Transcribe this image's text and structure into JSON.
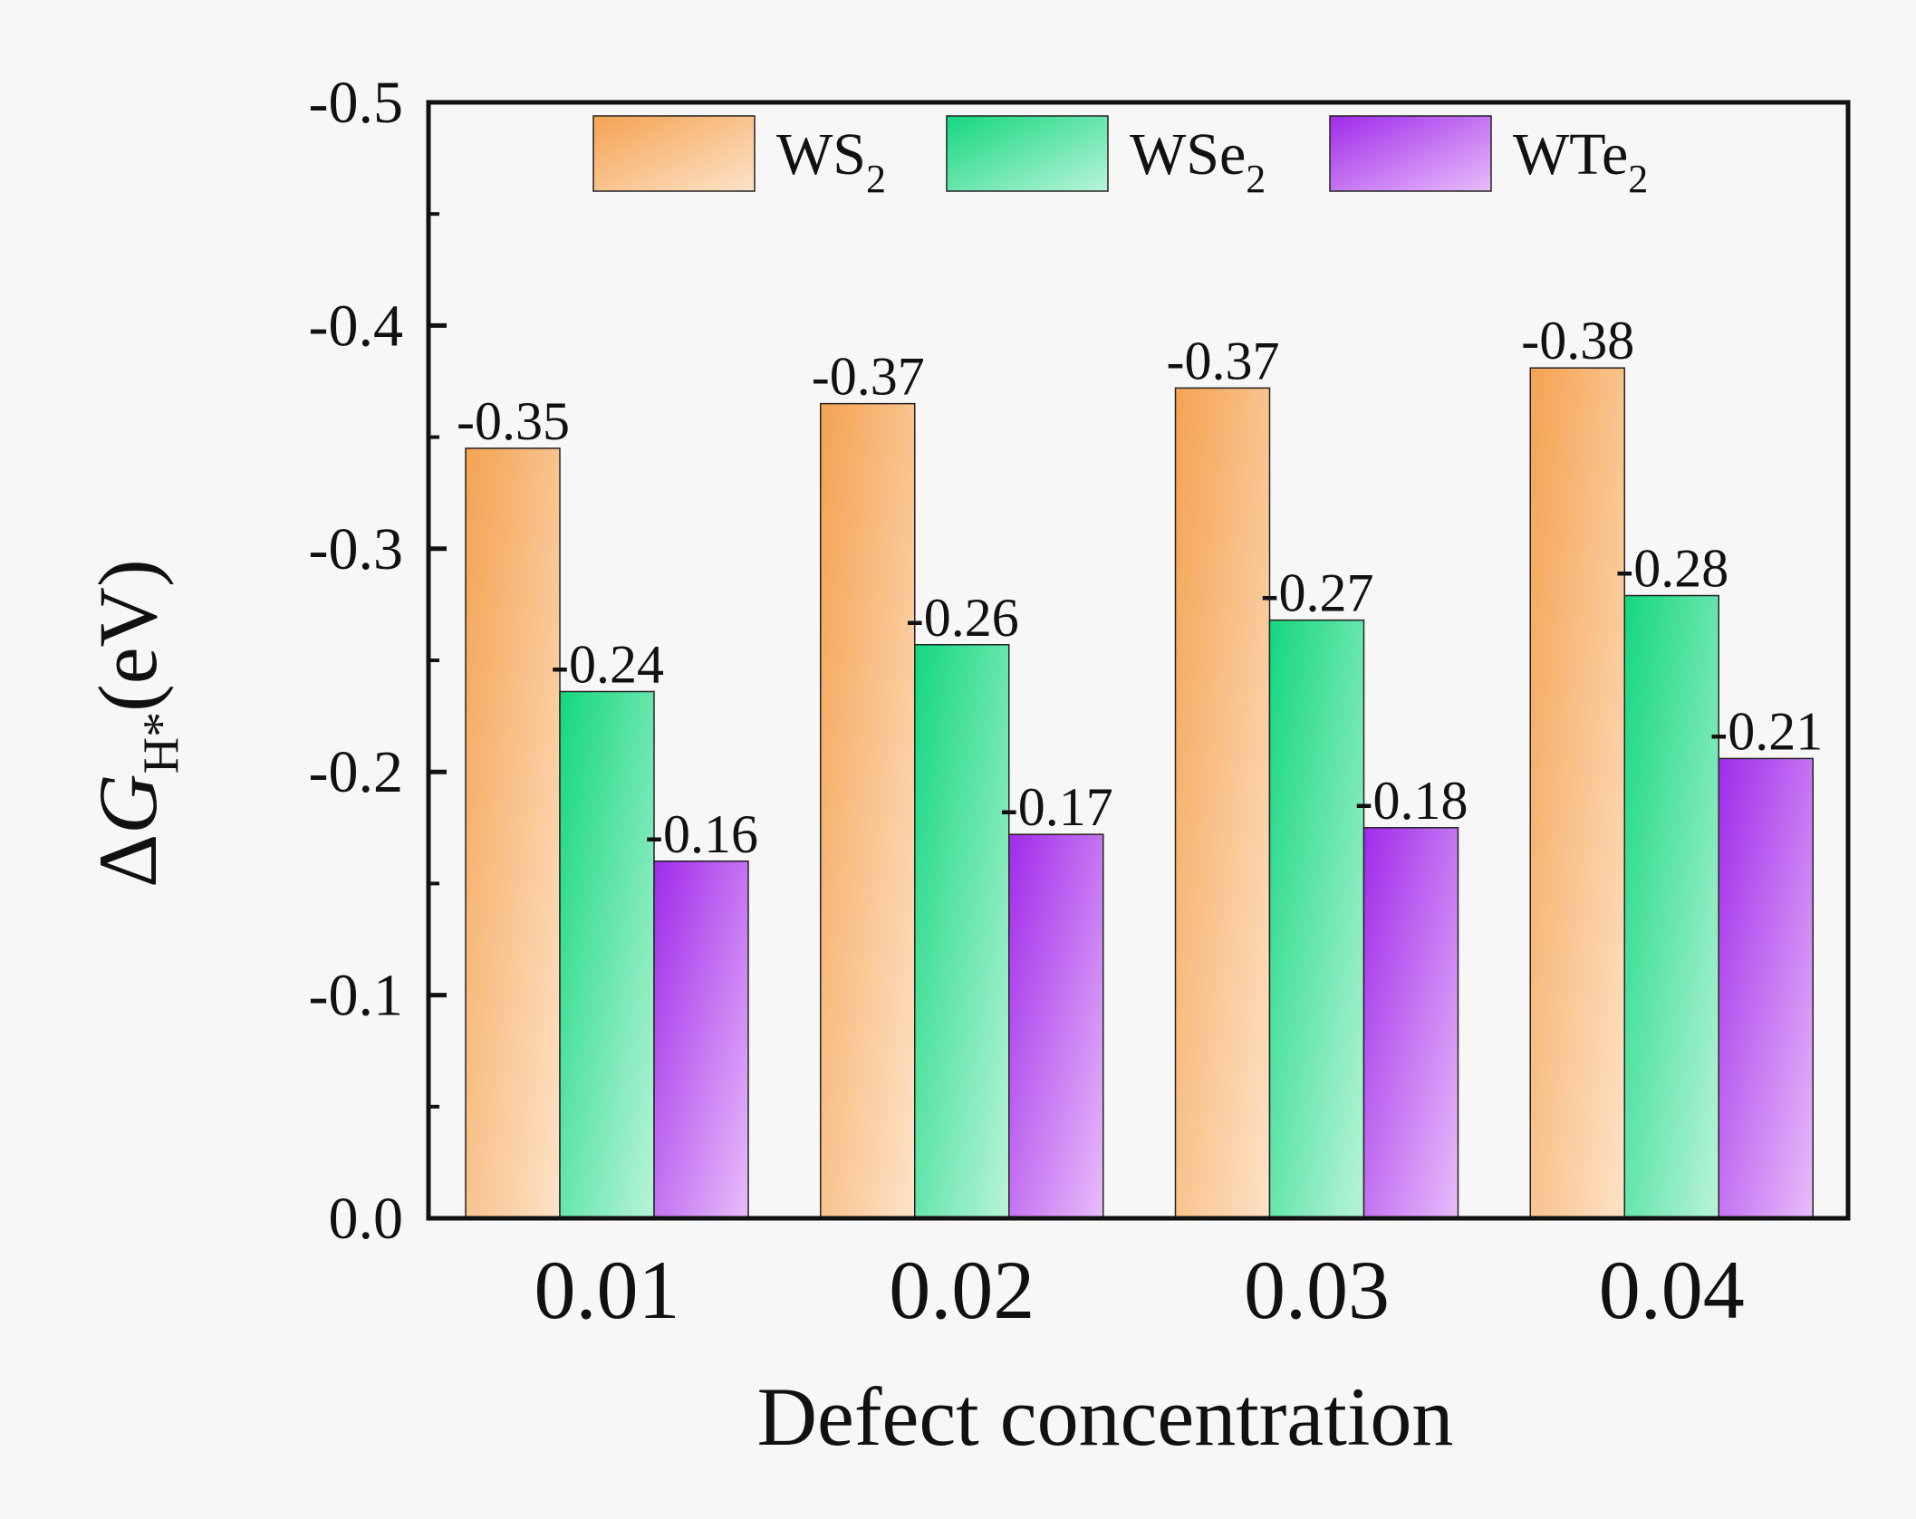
{
  "chart_data": {
    "type": "bar",
    "xlabel": "Defect concentration",
    "ylabel": {
      "delta": "Δ",
      "symbol": "G",
      "subscript": "H*",
      "unit": "(eV)"
    },
    "categories": [
      "0.01",
      "0.02",
      "0.03",
      "0.04"
    ],
    "ylim": [
      0.0,
      -0.5
    ],
    "yaxis_reversed": true,
    "yticks": [
      0.0,
      -0.1,
      -0.2,
      -0.3,
      -0.4,
      -0.5
    ],
    "ytick_labels": [
      "0.0",
      "-0.1",
      "-0.2",
      "-0.3",
      "-0.4",
      "-0.5"
    ],
    "legend_position": "top",
    "series": [
      {
        "name": "WS2",
        "legend": {
          "base": "WS",
          "sub": "2"
        },
        "color_top": "#f4a352",
        "color_light": "#fde3c8",
        "values": [
          -0.345,
          -0.365,
          -0.372,
          -0.381
        ],
        "labels": [
          "-0.35",
          "-0.37",
          "-0.37",
          "-0.38"
        ]
      },
      {
        "name": "WSe2",
        "legend": {
          "base": "WSe",
          "sub": "2"
        },
        "color_top": "#14d77f",
        "color_light": "#b9f4d8",
        "values": [
          -0.236,
          -0.257,
          -0.268,
          -0.279
        ],
        "labels": [
          "-0.24",
          "-0.26",
          "-0.27",
          "-0.28"
        ]
      },
      {
        "name": "WTe2",
        "legend": {
          "base": "WTe",
          "sub": "2"
        },
        "color_top": "#a02bea",
        "color_light": "#e8bdf9",
        "values": [
          -0.16,
          -0.172,
          -0.175,
          -0.206
        ],
        "labels": [
          "-0.16",
          "-0.17",
          "-0.18",
          "-0.21"
        ]
      }
    ]
  }
}
